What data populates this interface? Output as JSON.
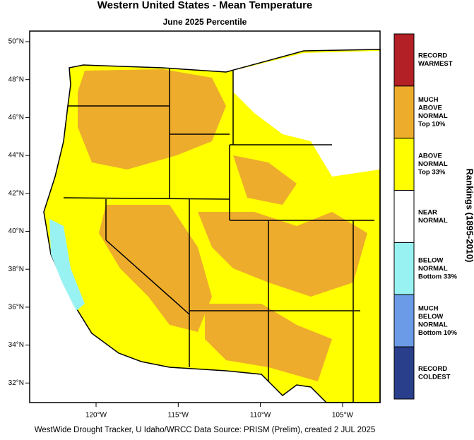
{
  "title": "Western United States - Mean Temperature",
  "subtitle": "June 2025 Percentile",
  "lat_ticks": [
    "50°N",
    "48°N",
    "46°N",
    "44°N",
    "42°N",
    "40°N",
    "38°N",
    "36°N",
    "34°N",
    "32°N"
  ],
  "lon_ticks": [
    "120°W",
    "115°W",
    "110°W",
    "105°W"
  ],
  "legend": [
    {
      "lines": [
        "RECORD",
        "WARMEST"
      ],
      "color": "#b32025"
    },
    {
      "lines": [
        "MUCH",
        "ABOVE",
        "NORMAL",
        "Top 10%"
      ],
      "color": "#eeac2c"
    },
    {
      "lines": [
        "ABOVE",
        "NORMAL",
        "Top 33%"
      ],
      "color": "#ffff00"
    },
    {
      "lines": [
        "NEAR",
        "NORMAL"
      ],
      "color": "#ffffff"
    },
    {
      "lines": [
        "BELOW",
        "NORMAL",
        "Bottom 33%"
      ],
      "color": "#99f2f2"
    },
    {
      "lines": [
        "MUCH",
        "BELOW",
        "NORMAL",
        "Bottom 10%"
      ],
      "color": "#6b9be6"
    },
    {
      "lines": [
        "RECORD",
        "COLDEST"
      ],
      "color": "#2a3f8c"
    }
  ],
  "legend_title": "Rankings (1895-2010)",
  "footer": "WestWide Drought Tracker, U Idaho/WRCC Data Source: PRISM (Prelim), created  2 JUL 2025"
}
